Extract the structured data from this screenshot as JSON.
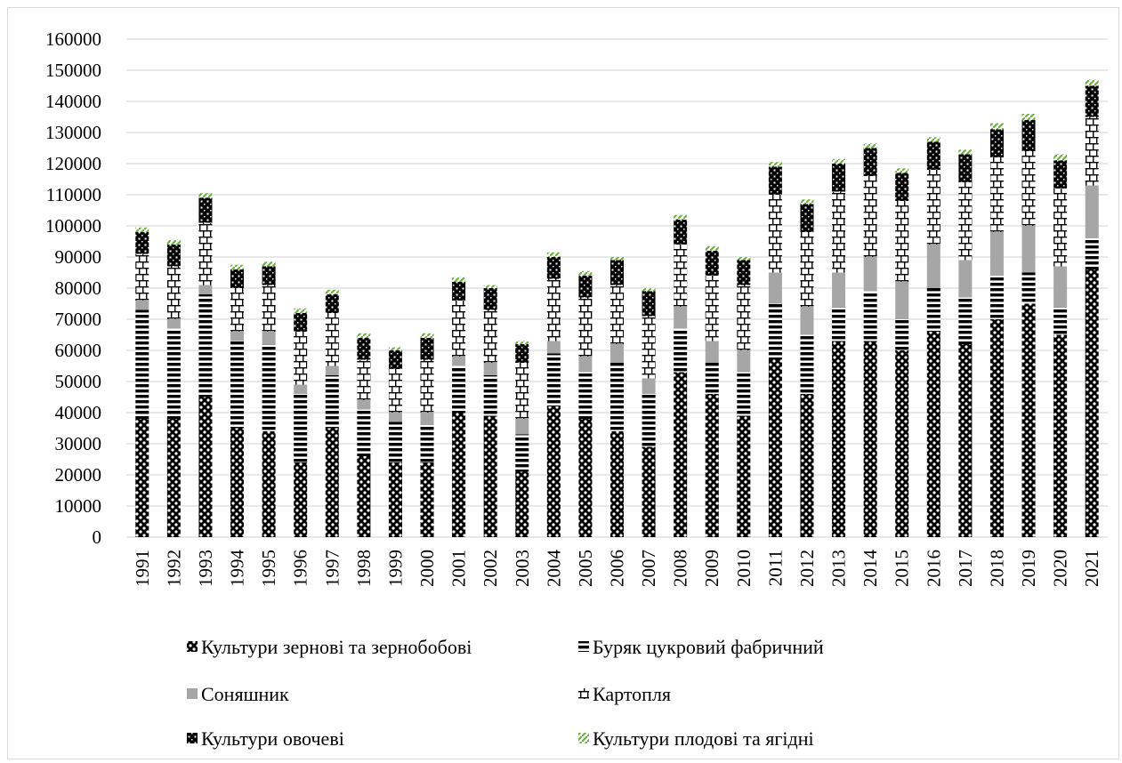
{
  "chart_data": {
    "type": "bar",
    "stacked": true,
    "categories": [
      "1991",
      "1992",
      "1993",
      "1994",
      "1995",
      "1996",
      "1997",
      "1998",
      "1999",
      "2000",
      "2001",
      "2002",
      "2003",
      "2004",
      "2005",
      "2006",
      "2007",
      "2008",
      "2009",
      "2010",
      "2011",
      "2012",
      "2013",
      "2014",
      "2015",
      "2016",
      "2017",
      "2018",
      "2019",
      "2020",
      "2021"
    ],
    "ylim": [
      0,
      160000
    ],
    "yticks": [
      "0",
      "10000",
      "20000",
      "30000",
      "40000",
      "50000",
      "60000",
      "70000",
      "80000",
      "90000",
      "100000",
      "110000",
      "120000",
      "130000",
      "140000",
      "150000",
      "160000"
    ],
    "grid": true,
    "legend_position": "bottom",
    "series": [
      {
        "name": "Культури зернові та зернобобові",
        "pattern": "grain",
        "color": "#000000",
        "values": [
          38000,
          38000,
          45000,
          35000,
          34000,
          24000,
          35000,
          26000,
          24000,
          24000,
          40000,
          39000,
          21000,
          42000,
          38000,
          34000,
          29000,
          53000,
          46000,
          39000,
          57000,
          46000,
          63000,
          63000,
          60000,
          66000,
          62000,
          70000,
          75000,
          65000,
          86000
        ]
      },
      {
        "name": "Буряк цукровий фабричний",
        "pattern": "beet",
        "color": "#000000",
        "values": [
          35000,
          29000,
          33000,
          28000,
          28000,
          22000,
          17000,
          15000,
          13000,
          12000,
          15000,
          13000,
          12000,
          17000,
          15000,
          22000,
          17000,
          14000,
          10000,
          14000,
          18000,
          19000,
          11000,
          16000,
          10000,
          14000,
          15000,
          14000,
          10000,
          9000,
          10000
        ]
      },
      {
        "name": "Соняшник",
        "pattern": "solid",
        "color": "#a6a6a6",
        "values": [
          3000,
          3000,
          3000,
          3000,
          4000,
          3000,
          3000,
          3000,
          3000,
          4000,
          3000,
          4000,
          5000,
          4000,
          5000,
          6000,
          5000,
          7000,
          7000,
          7000,
          10000,
          9000,
          11000,
          11000,
          12000,
          14000,
          12000,
          14000,
          15000,
          13000,
          17000
        ]
      },
      {
        "name": "Картопля",
        "pattern": "potato",
        "color": "#000000",
        "values": [
          15000,
          17000,
          20000,
          14000,
          15000,
          17000,
          17000,
          13000,
          14000,
          17000,
          18000,
          17000,
          18000,
          20000,
          19000,
          19000,
          20000,
          20000,
          21000,
          21000,
          25000,
          24000,
          26000,
          26000,
          26000,
          24000,
          25000,
          24000,
          24000,
          25000,
          22000
        ]
      },
      {
        "name": "Культури овочеві",
        "pattern": "veg",
        "color": "#000000",
        "values": [
          7000,
          7000,
          8000,
          6000,
          6000,
          6000,
          6000,
          7000,
          6000,
          7000,
          6000,
          7000,
          6000,
          7000,
          7000,
          8000,
          8000,
          8000,
          8000,
          8000,
          9000,
          9000,
          9000,
          9000,
          9000,
          9000,
          9000,
          9000,
          10000,
          9000,
          10000
        ]
      },
      {
        "name": "Культури плодові та ягідні",
        "pattern": "fruit",
        "color": "#70ad47",
        "values": [
          1500,
          1500,
          1500,
          1500,
          1500,
          1500,
          1500,
          1500,
          1000,
          1500,
          1500,
          1000,
          1000,
          1500,
          1500,
          1000,
          1000,
          1500,
          1500,
          1000,
          1500,
          1500,
          1500,
          1500,
          1500,
          1500,
          1500,
          2000,
          2000,
          2000,
          2000
        ]
      }
    ]
  }
}
